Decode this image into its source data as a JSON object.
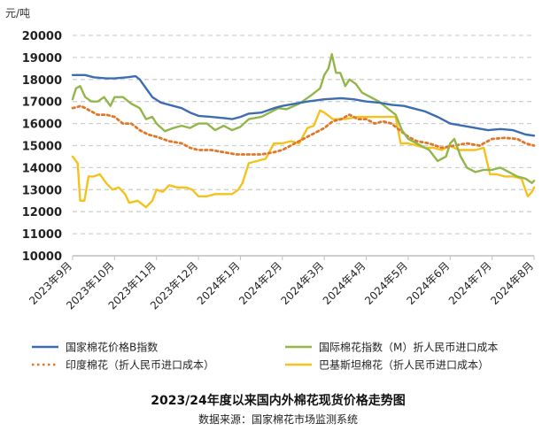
{
  "chart_data": {
    "type": "line",
    "title": "2023/24年度以来国内外棉花现货价格走势图",
    "source": "数据来源：国家棉花市场监测系统",
    "unit_label": "元/吨",
    "ylim": [
      10000,
      20000
    ],
    "y_ticks": [
      10000,
      11000,
      12000,
      13000,
      14000,
      15000,
      16000,
      17000,
      18000,
      19000,
      20000
    ],
    "x_ticks": [
      "2023年9月",
      "2023年10月",
      "2023年11月",
      "2023年12月",
      "2024年1月",
      "2024年2月",
      "2024年3月",
      "2024年4月",
      "2024年5月",
      "2024年6月",
      "2024年7月",
      "2024年8月"
    ],
    "x_range": [
      0,
      11
    ],
    "grid": "horizontal-dashed",
    "legend_position": "bottom",
    "series": [
      {
        "name": "国家棉花价格B指数",
        "color": "#3c6db0",
        "dash": "solid",
        "points": [
          [
            0,
            18200
          ],
          [
            0.3,
            18200
          ],
          [
            0.5,
            18100
          ],
          [
            0.8,
            18050
          ],
          [
            1.0,
            18050
          ],
          [
            1.3,
            18100
          ],
          [
            1.5,
            18150
          ],
          [
            1.6,
            18000
          ],
          [
            1.75,
            17600
          ],
          [
            1.9,
            17200
          ],
          [
            2.1,
            16950
          ],
          [
            2.4,
            16800
          ],
          [
            2.6,
            16700
          ],
          [
            2.8,
            16500
          ],
          [
            3.0,
            16350
          ],
          [
            3.3,
            16300
          ],
          [
            3.6,
            16250
          ],
          [
            3.8,
            16200
          ],
          [
            4.0,
            16300
          ],
          [
            4.2,
            16450
          ],
          [
            4.5,
            16500
          ],
          [
            4.8,
            16700
          ],
          [
            5.0,
            16800
          ],
          [
            5.3,
            16900
          ],
          [
            5.6,
            17000
          ],
          [
            6.0,
            17100
          ],
          [
            6.4,
            17150
          ],
          [
            6.7,
            17100
          ],
          [
            7.0,
            17000
          ],
          [
            7.3,
            16950
          ],
          [
            7.6,
            16850
          ],
          [
            7.9,
            16800
          ],
          [
            8.1,
            16700
          ],
          [
            8.4,
            16550
          ],
          [
            8.7,
            16300
          ],
          [
            9.0,
            16000
          ],
          [
            9.3,
            15900
          ],
          [
            9.6,
            15800
          ],
          [
            9.9,
            15700
          ],
          [
            10.2,
            15750
          ],
          [
            10.5,
            15700
          ],
          [
            10.8,
            15500
          ],
          [
            11.0,
            15450
          ]
        ]
      },
      {
        "name": "国际棉花指数（M）折人民币进口成本",
        "color": "#92b64a",
        "dash": "solid",
        "points": [
          [
            0,
            17100
          ],
          [
            0.08,
            17600
          ],
          [
            0.18,
            17700
          ],
          [
            0.3,
            17200
          ],
          [
            0.45,
            17000
          ],
          [
            0.6,
            17000
          ],
          [
            0.75,
            17200
          ],
          [
            0.9,
            16800
          ],
          [
            1.0,
            17200
          ],
          [
            1.2,
            17200
          ],
          [
            1.4,
            16900
          ],
          [
            1.6,
            16700
          ],
          [
            1.75,
            16200
          ],
          [
            1.9,
            16300
          ],
          [
            2.0,
            16000
          ],
          [
            2.2,
            15650
          ],
          [
            2.4,
            15800
          ],
          [
            2.6,
            15900
          ],
          [
            2.8,
            15800
          ],
          [
            3.0,
            16000
          ],
          [
            3.2,
            16000
          ],
          [
            3.4,
            15700
          ],
          [
            3.6,
            15900
          ],
          [
            3.8,
            15700
          ],
          [
            4.0,
            15850
          ],
          [
            4.2,
            16200
          ],
          [
            4.5,
            16300
          ],
          [
            4.7,
            16500
          ],
          [
            4.9,
            16700
          ],
          [
            5.1,
            16650
          ],
          [
            5.4,
            16900
          ],
          [
            5.7,
            17300
          ],
          [
            5.9,
            17600
          ],
          [
            6.0,
            18200
          ],
          [
            6.1,
            18500
          ],
          [
            6.18,
            19150
          ],
          [
            6.28,
            18300
          ],
          [
            6.38,
            18300
          ],
          [
            6.5,
            17700
          ],
          [
            6.6,
            18000
          ],
          [
            6.75,
            17800
          ],
          [
            6.9,
            17400
          ],
          [
            7.1,
            17200
          ],
          [
            7.3,
            17000
          ],
          [
            7.5,
            16700
          ],
          [
            7.7,
            16400
          ],
          [
            7.85,
            15700
          ],
          [
            8.0,
            15300
          ],
          [
            8.15,
            15150
          ],
          [
            8.3,
            15000
          ],
          [
            8.5,
            14800
          ],
          [
            8.7,
            14300
          ],
          [
            8.9,
            14500
          ],
          [
            9.0,
            15100
          ],
          [
            9.1,
            15300
          ],
          [
            9.25,
            14500
          ],
          [
            9.4,
            14000
          ],
          [
            9.6,
            13800
          ],
          [
            9.8,
            13900
          ],
          [
            10.0,
            13900
          ],
          [
            10.2,
            14000
          ],
          [
            10.4,
            13800
          ],
          [
            10.6,
            13600
          ],
          [
            10.8,
            13500
          ],
          [
            10.95,
            13300
          ],
          [
            11.0,
            13400
          ]
        ]
      },
      {
        "name": "印度棉花（折人民币进口成本）",
        "color": "#e0782a",
        "dash": "dotted",
        "points": [
          [
            0,
            16700
          ],
          [
            0.2,
            16800
          ],
          [
            0.4,
            16600
          ],
          [
            0.6,
            16400
          ],
          [
            0.8,
            16400
          ],
          [
            1.0,
            16300
          ],
          [
            1.2,
            16000
          ],
          [
            1.4,
            16000
          ],
          [
            1.6,
            15700
          ],
          [
            1.8,
            15500
          ],
          [
            2.0,
            15400
          ],
          [
            2.3,
            15200
          ],
          [
            2.6,
            15100
          ],
          [
            2.8,
            14900
          ],
          [
            3.0,
            14800
          ],
          [
            3.3,
            14800
          ],
          [
            3.6,
            14700
          ],
          [
            3.9,
            14600
          ],
          [
            4.2,
            14600
          ],
          [
            4.5,
            14600
          ],
          [
            4.8,
            14700
          ],
          [
            5.0,
            14800
          ],
          [
            5.2,
            15000
          ],
          [
            5.4,
            15200
          ],
          [
            5.6,
            15400
          ],
          [
            5.8,
            15600
          ],
          [
            6.0,
            15800
          ],
          [
            6.2,
            16100
          ],
          [
            6.4,
            16200
          ],
          [
            6.6,
            16400
          ],
          [
            6.8,
            16200
          ],
          [
            7.0,
            16200
          ],
          [
            7.2,
            16000
          ],
          [
            7.4,
            16100
          ],
          [
            7.6,
            16000
          ],
          [
            7.8,
            15700
          ],
          [
            8.0,
            15400
          ],
          [
            8.2,
            15200
          ],
          [
            8.5,
            15100
          ],
          [
            8.8,
            14900
          ],
          [
            9.1,
            15000
          ],
          [
            9.4,
            15100
          ],
          [
            9.7,
            15000
          ],
          [
            10.0,
            15300
          ],
          [
            10.3,
            15350
          ],
          [
            10.6,
            15300
          ],
          [
            10.8,
            15100
          ],
          [
            11.0,
            15000
          ]
        ]
      },
      {
        "name": "巴基斯坦棉花（折人民币进口成本）",
        "color": "#f5c21b",
        "dash": "solid",
        "points": [
          [
            0,
            14500
          ],
          [
            0.12,
            14200
          ],
          [
            0.18,
            12500
          ],
          [
            0.28,
            12500
          ],
          [
            0.38,
            13600
          ],
          [
            0.5,
            13600
          ],
          [
            0.65,
            13700
          ],
          [
            0.8,
            13300
          ],
          [
            0.95,
            13000
          ],
          [
            1.1,
            13100
          ],
          [
            1.25,
            12800
          ],
          [
            1.35,
            12400
          ],
          [
            1.55,
            12500
          ],
          [
            1.75,
            12200
          ],
          [
            1.9,
            12500
          ],
          [
            2.0,
            13000
          ],
          [
            2.15,
            12900
          ],
          [
            2.3,
            13200
          ],
          [
            2.5,
            13100
          ],
          [
            2.7,
            13100
          ],
          [
            2.85,
            13000
          ],
          [
            3.0,
            12700
          ],
          [
            3.2,
            12700
          ],
          [
            3.4,
            12800
          ],
          [
            3.6,
            12800
          ],
          [
            3.8,
            12800
          ],
          [
            3.95,
            13000
          ],
          [
            4.05,
            13300
          ],
          [
            4.2,
            14200
          ],
          [
            4.4,
            14300
          ],
          [
            4.6,
            14400
          ],
          [
            4.8,
            15100
          ],
          [
            5.0,
            15100
          ],
          [
            5.2,
            15200
          ],
          [
            5.4,
            15100
          ],
          [
            5.6,
            15800
          ],
          [
            5.75,
            15900
          ],
          [
            5.9,
            16600
          ],
          [
            6.0,
            16500
          ],
          [
            6.2,
            16200
          ],
          [
            6.5,
            16200
          ],
          [
            6.8,
            16300
          ],
          [
            7.1,
            16300
          ],
          [
            7.3,
            16300
          ],
          [
            7.5,
            16300
          ],
          [
            7.7,
            16300
          ],
          [
            7.82,
            15100
          ],
          [
            8.0,
            15100
          ],
          [
            8.2,
            15000
          ],
          [
            8.4,
            14900
          ],
          [
            8.6,
            14900
          ],
          [
            8.8,
            14800
          ],
          [
            9.0,
            15000
          ],
          [
            9.2,
            14800
          ],
          [
            9.4,
            14800
          ],
          [
            9.6,
            14800
          ],
          [
            9.8,
            14900
          ],
          [
            9.95,
            13700
          ],
          [
            10.1,
            13700
          ],
          [
            10.3,
            13600
          ],
          [
            10.5,
            13600
          ],
          [
            10.7,
            13500
          ],
          [
            10.85,
            12700
          ],
          [
            10.95,
            12900
          ],
          [
            11.0,
            13100
          ]
        ]
      }
    ]
  }
}
